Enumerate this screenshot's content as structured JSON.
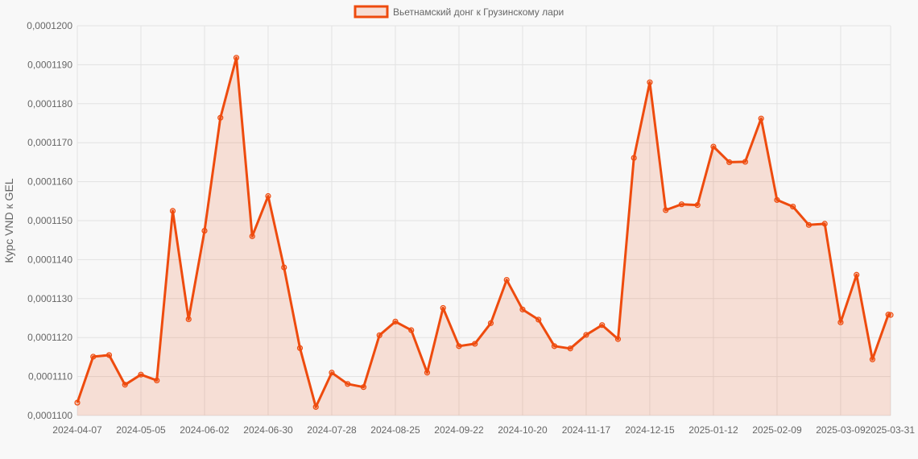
{
  "chart_data": {
    "type": "area",
    "legend": {
      "label": "Вьетнамский донг к Грузинскому лари",
      "position": "top"
    },
    "ylabel": "Курс VND к GEL",
    "ylim": [
      0.00011,
      0.00012
    ],
    "y_ticks": [
      "0,0001100",
      "0,0001110",
      "0,0001120",
      "0,0001130",
      "0,0001140",
      "0,0001150",
      "0,0001160",
      "0,0001170",
      "0,0001180",
      "0,0001190",
      "0,0001200"
    ],
    "x_tick_labels": [
      "2024-04-07",
      "2024-05-05",
      "2024-06-02",
      "2024-06-30",
      "2024-07-28",
      "2024-08-25",
      "2024-09-22",
      "2024-10-20",
      "2024-11-17",
      "2024-12-15",
      "2025-01-12",
      "2025-02-09",
      "2025-03-09",
      "2025-03-31"
    ],
    "grid": true,
    "colors": {
      "line": "#ee4b0e",
      "fill": "rgba(238,75,14,0.15)",
      "grid": "#e2e2e2"
    },
    "series": [
      {
        "name": "Вьетнамский донг к Грузинскому лари",
        "x": [
          "2024-04-07",
          "2024-04-14",
          "2024-04-21",
          "2024-04-28",
          "2024-05-05",
          "2024-05-12",
          "2024-05-19",
          "2024-05-26",
          "2024-06-02",
          "2024-06-09",
          "2024-06-16",
          "2024-06-23",
          "2024-06-30",
          "2024-07-07",
          "2024-07-14",
          "2024-07-21",
          "2024-07-28",
          "2024-08-04",
          "2024-08-11",
          "2024-08-18",
          "2024-08-25",
          "2024-09-01",
          "2024-09-08",
          "2024-09-15",
          "2024-09-22",
          "2024-09-29",
          "2024-10-06",
          "2024-10-13",
          "2024-10-20",
          "2024-10-27",
          "2024-11-03",
          "2024-11-10",
          "2024-11-17",
          "2024-11-24",
          "2024-12-01",
          "2024-12-08",
          "2024-12-15",
          "2024-12-22",
          "2024-12-29",
          "2025-01-05",
          "2025-01-12",
          "2025-01-19",
          "2025-01-26",
          "2025-02-02",
          "2025-02-09",
          "2025-02-16",
          "2025-02-23",
          "2025-03-02",
          "2025-03-09",
          "2025-03-16",
          "2025-03-23",
          "2025-03-30",
          "2025-03-31"
        ],
        "values": [
          0.00011033,
          0.00011151,
          0.00011155,
          0.00011079,
          0.00011105,
          0.0001109,
          0.00011525,
          0.00011247,
          0.00011474,
          0.00011764,
          0.00011918,
          0.0001146,
          0.00011563,
          0.0001138,
          0.00011173,
          0.00011022,
          0.0001111,
          0.00011081,
          0.00011073,
          0.00011206,
          0.00011241,
          0.00011219,
          0.0001111,
          0.00011276,
          0.00011178,
          0.00011184,
          0.00011237,
          0.00011348,
          0.00011272,
          0.00011246,
          0.00011178,
          0.00011172,
          0.00011207,
          0.00011232,
          0.00011196,
          0.00011661,
          0.00011855,
          0.00011527,
          0.00011542,
          0.0001154,
          0.0001169,
          0.0001165,
          0.00011651,
          0.00011762,
          0.00011553,
          0.00011536,
          0.00011489,
          0.00011492,
          0.00011239,
          0.00011361,
          0.00011144,
          0.00011259,
          0.00011258
        ]
      }
    ]
  }
}
